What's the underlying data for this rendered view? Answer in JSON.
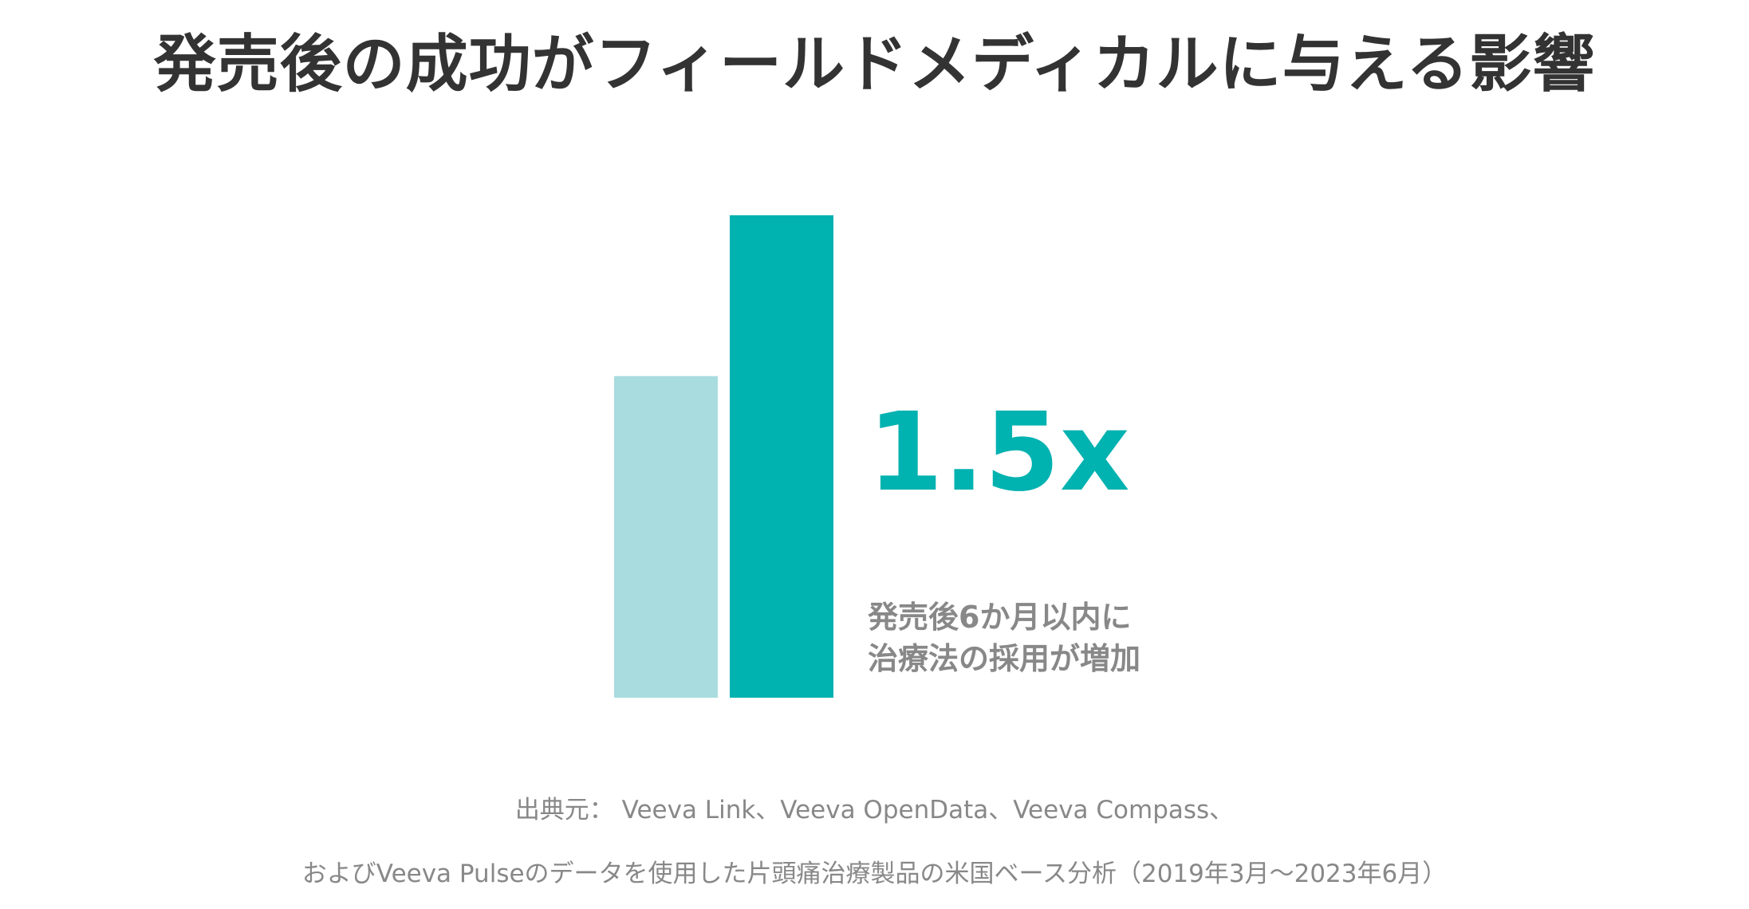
{
  "title": "発売後の成功がフィールドメディカルに与える影響",
  "colors": {
    "baseline_bar": "#a8dcdf",
    "highlight_bar": "#00b2b0",
    "text_dark": "#333333",
    "text_muted": "#888888"
  },
  "chart_data": {
    "type": "bar",
    "categories": [
      "",
      ""
    ],
    "values": [
      1.0,
      1.5
    ],
    "ylim": [
      0,
      1.5
    ],
    "grid": false,
    "annotations": [
      "1.5x",
      "発売後6か月以内に",
      "治療法の採用が増加"
    ]
  },
  "highlight": {
    "multiplier": "1.5x",
    "caption_line1": "発売後6か月以内に",
    "caption_line2": "治療法の採用が増加"
  },
  "source": {
    "line1": "出典元： Veeva Link、Veeva OpenData、Veeva Compass、",
    "line2": "およびVeeva Pulseのデータを使用した片頭痛治療製品の米国ベース分析（2019年3月～2023年6月）"
  }
}
